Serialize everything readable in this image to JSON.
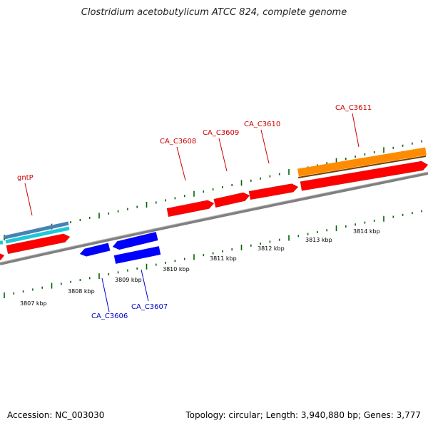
{
  "title": "Clostridium acetobutylicum ATCC 824, complete genome",
  "footer": {
    "accession": "Accession: NC_003030",
    "stats": "Topology: circular; Length: 3,940,880 bp; Genes: 3,777"
  },
  "colors": {
    "forward_gene": "#ff0000",
    "reverse_gene": "#0000ff",
    "highlight_gene": "#ff8c00",
    "backbone": "#808080",
    "tick": "#006400",
    "forward_label": "#cc0000",
    "reverse_label": "#0000cc"
  },
  "scale_labels": [
    "3807 kbp",
    "3808 kbp",
    "3809 kbp",
    "3810 kbp",
    "3811 kbp",
    "3812 kbp",
    "3813 kbp",
    "3814 kbp"
  ],
  "gene_labels": {
    "forward": [
      "gntP",
      "CA_C3608",
      "CA_C3609",
      "CA_C3610",
      "CA_C3611"
    ],
    "reverse": [
      "CA_C3606",
      "CA_C3607"
    ]
  }
}
